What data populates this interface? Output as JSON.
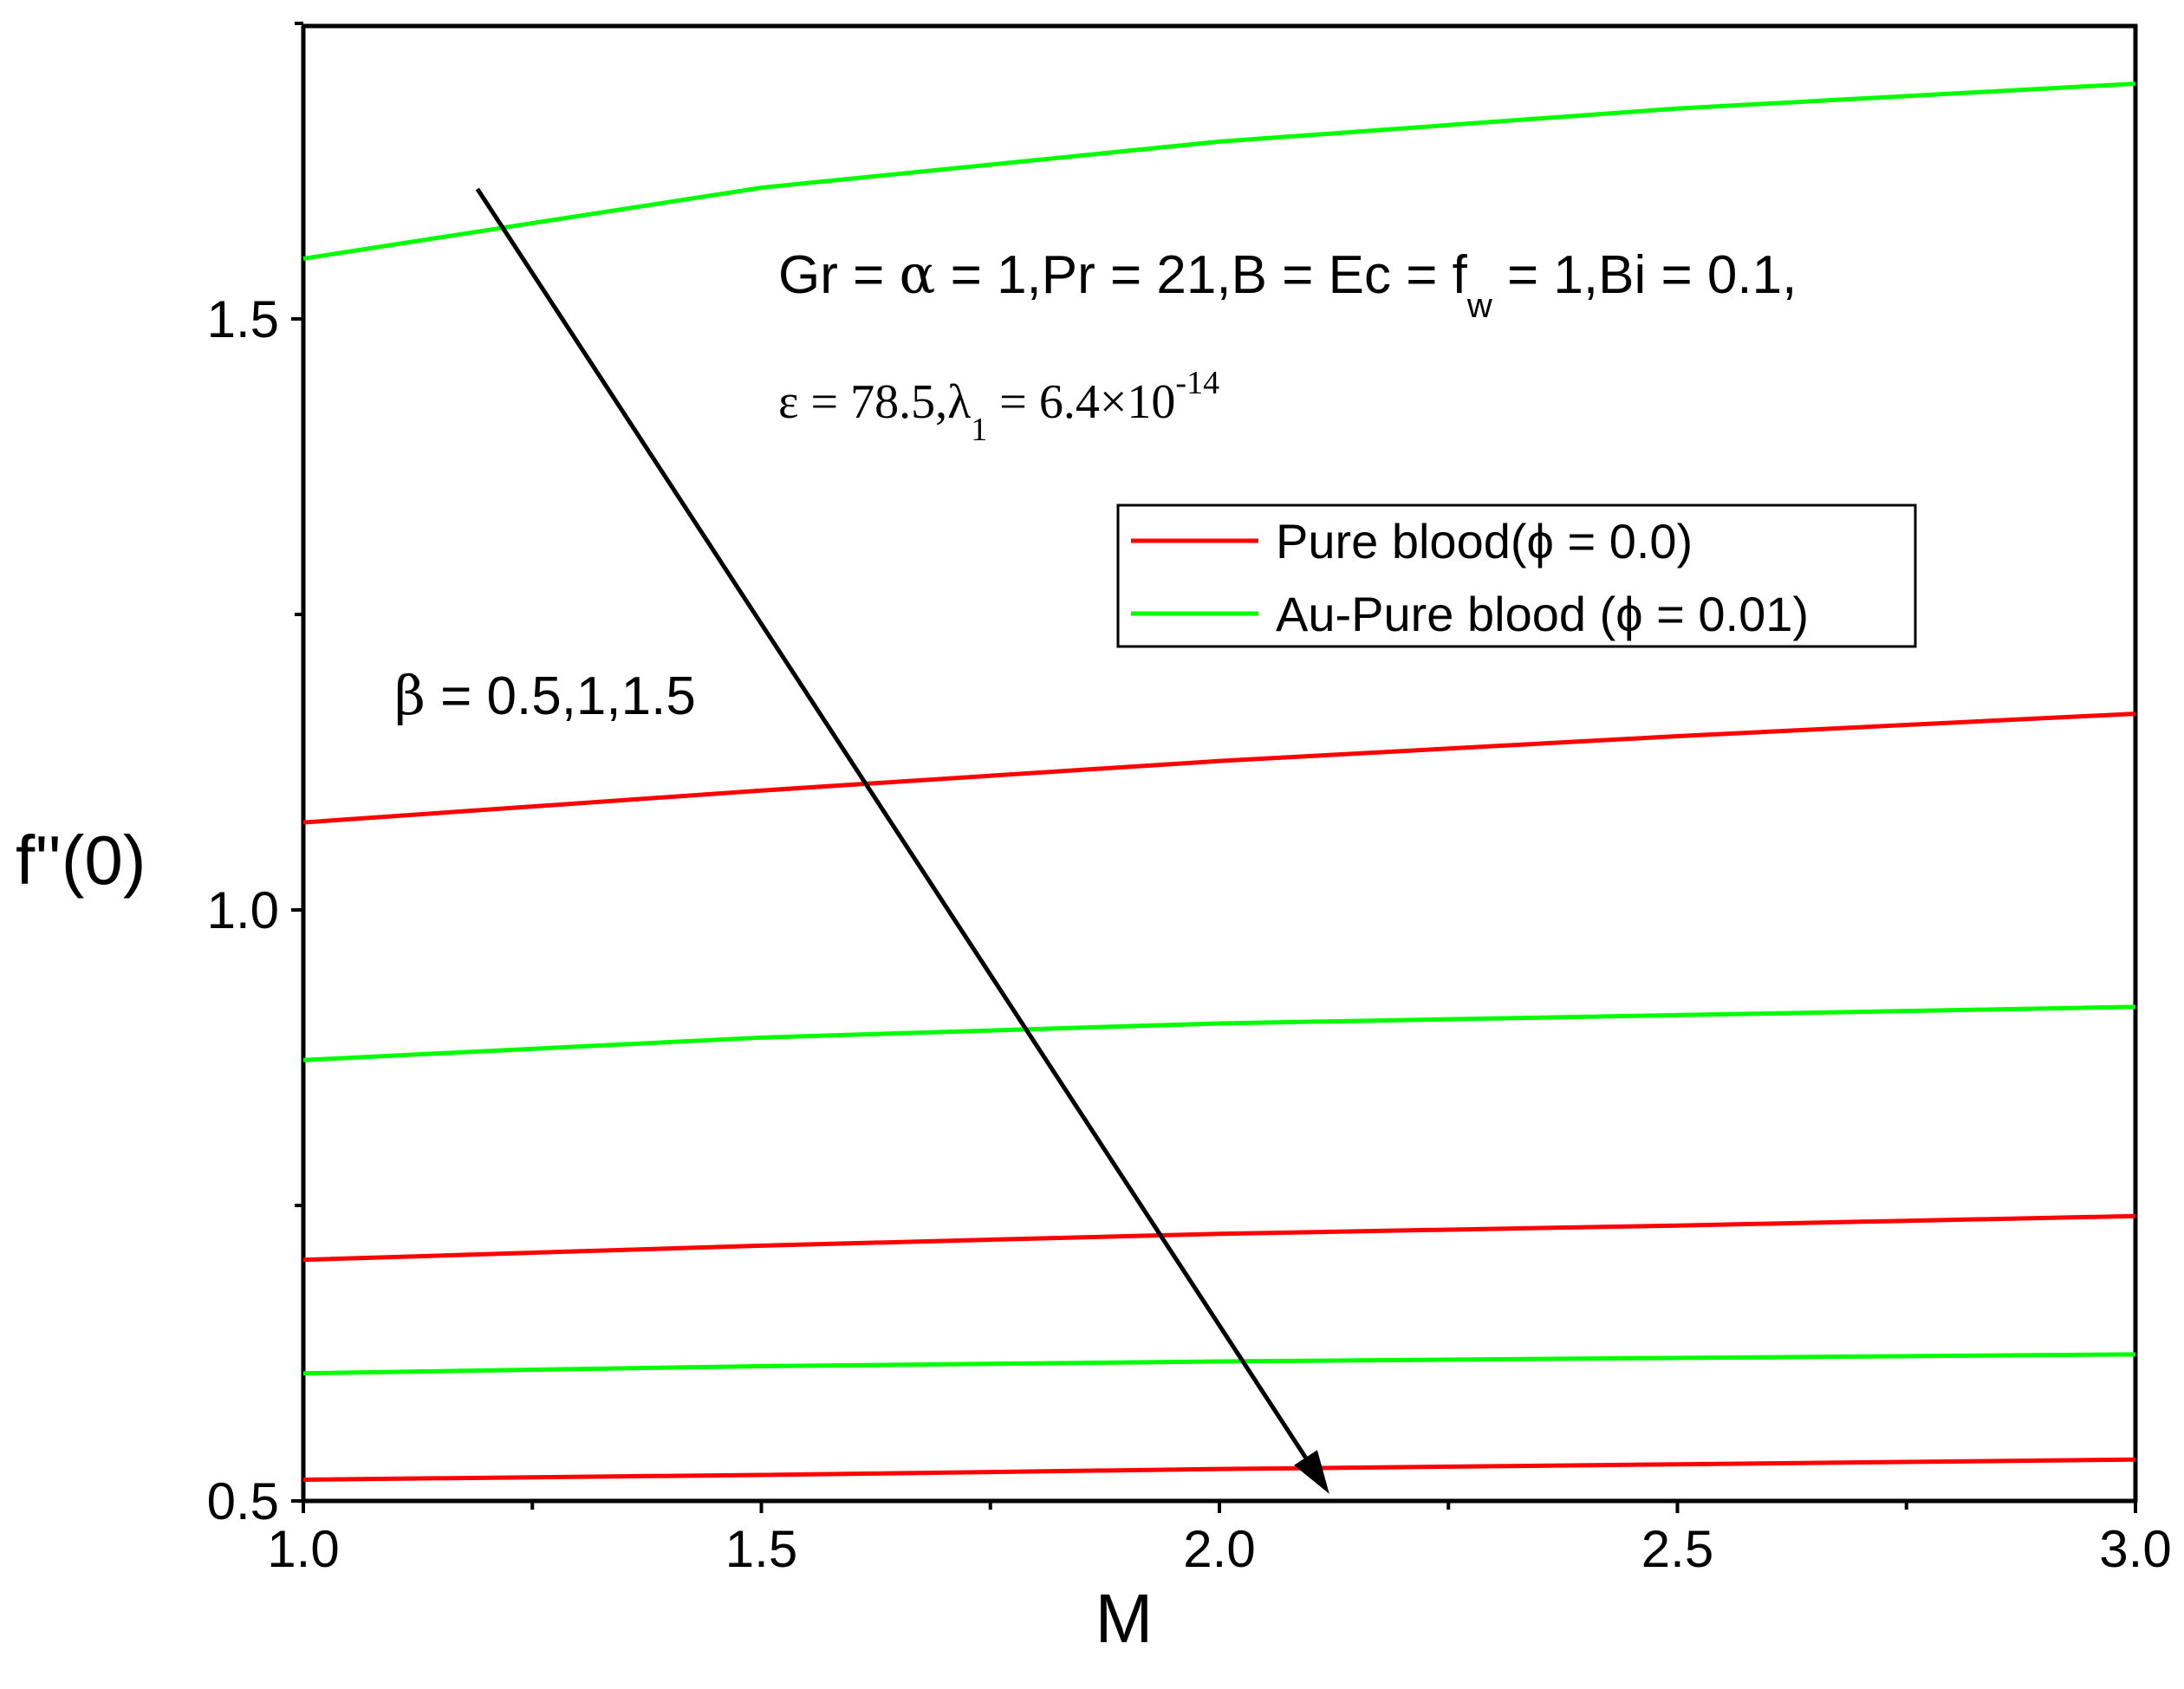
{
  "chart_data": {
    "type": "line",
    "xlabel": "M",
    "ylabel": "f''(0)",
    "xlim": [
      1.0,
      3.0
    ],
    "ylim": [
      0.5,
      1.7
    ],
    "x_ticks": [
      "1.0",
      "1.5",
      "2.0",
      "2.5",
      "3.0"
    ],
    "y_ticks": [
      "0.5",
      "1.0",
      "1.5"
    ],
    "colors": {
      "pure_blood": "#ff0000",
      "au_blood": "#00ff00"
    },
    "series": [
      {
        "name": "Pure blood(ϕ = 0.0)",
        "group": "pure_blood",
        "beta": 0.5,
        "x": [
          1.0,
          1.5,
          2.0,
          2.5,
          3.0
        ],
        "y": [
          1.074,
          1.101,
          1.126,
          1.147,
          1.166
        ]
      },
      {
        "name": "Pure blood(ϕ = 0.0)",
        "group": "pure_blood",
        "beta": 1.0,
        "x": [
          1.0,
          1.5,
          2.0,
          2.5,
          3.0
        ],
        "y": [
          0.704,
          0.716,
          0.726,
          0.733,
          0.741
        ]
      },
      {
        "name": "Pure blood(ϕ = 0.0)",
        "group": "pure_blood",
        "beta": 1.5,
        "x": [
          1.0,
          1.5,
          2.0,
          2.5,
          3.0
        ],
        "y": [
          0.518,
          0.522,
          0.527,
          0.531,
          0.535
        ]
      },
      {
        "name": "Au-Pure blood (ϕ = 0.01)",
        "group": "au_blood",
        "beta": 0.5,
        "x": [
          1.0,
          1.5,
          2.0,
          2.5,
          3.0
        ],
        "y": [
          1.551,
          1.611,
          1.65,
          1.678,
          1.699
        ]
      },
      {
        "name": "Au-Pure blood (ϕ = 0.01)",
        "group": "au_blood",
        "beta": 1.0,
        "x": [
          1.0,
          1.5,
          2.0,
          2.5,
          3.0
        ],
        "y": [
          0.873,
          0.892,
          0.904,
          0.911,
          0.918
        ]
      },
      {
        "name": "Au-Pure blood (ϕ = 0.01)",
        "group": "au_blood",
        "beta": 1.5,
        "x": [
          1.0,
          1.5,
          2.0,
          2.5,
          3.0
        ],
        "y": [
          0.608,
          0.614,
          0.618,
          0.621,
          0.624
        ]
      }
    ],
    "legend": {
      "placement": "upper-right, inside",
      "entries": [
        {
          "label": "Pure blood(ϕ = 0.0)",
          "color": "#ff0000"
        },
        {
          "label": "Au-Pure blood (ϕ = 0.01)",
          "color": "#00ff00"
        }
      ]
    },
    "annotations": {
      "params_line1_a": "Gr = ",
      "params_line1_alpha": "α",
      "params_line1_b": " = 1,Pr = 21,B = Ec = f",
      "params_line1_sub": "w",
      "params_line1_c": " = 1,Bi = 0.1,",
      "params_line2_a": "ε = 78.5,λ",
      "params_line2_sub": "1",
      "params_line2_b": " = 6.4×10",
      "params_line2_sup": "-14",
      "beta_symbol": "β",
      "beta_values": " = 0.5,1,1.5",
      "arrow_from": {
        "x": 1.19,
        "y": 1.61
      },
      "arrow_to": {
        "x": 2.12,
        "y": 0.506
      }
    }
  }
}
